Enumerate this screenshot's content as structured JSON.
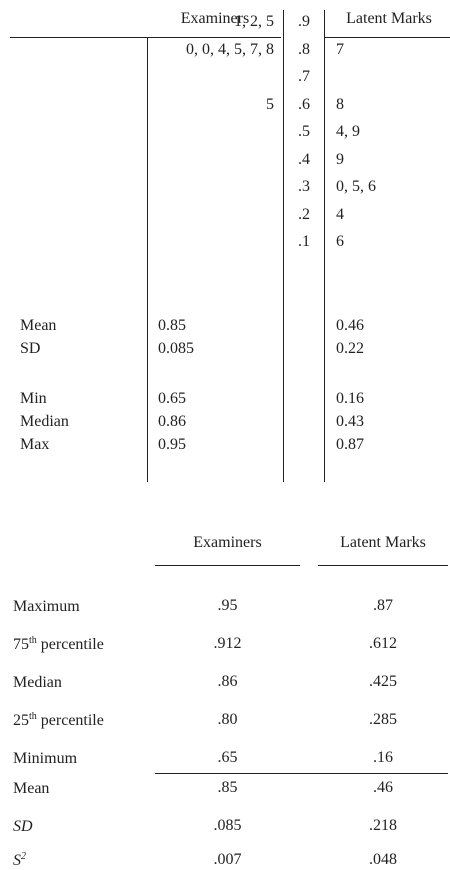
{
  "stem_plot": {
    "header_left": "Examiners",
    "header_right": "Latent Marks",
    "rows": [
      {
        "left": "1, 2, 5",
        "stem": ".9",
        "right": ""
      },
      {
        "left": "0, 0, 4, 5, 7, 8",
        "stem": ".8",
        "right": "7"
      },
      {
        "left": "",
        "stem": ".7",
        "right": ""
      },
      {
        "left": "5",
        "stem": ".6",
        "right": "8"
      },
      {
        "left": "",
        "stem": ".5",
        "right": "4, 9"
      },
      {
        "left": "",
        "stem": ".4",
        "right": "9"
      },
      {
        "left": "",
        "stem": ".3",
        "right": "0, 5, 6"
      },
      {
        "left": "",
        "stem": ".2",
        "right": "4"
      },
      {
        "left": "",
        "stem": ".1",
        "right": "6"
      }
    ],
    "stats": [
      {
        "label": "Mean",
        "examiners": "0.85",
        "latent": "0.46"
      },
      {
        "label": "SD",
        "examiners": "0.085",
        "latent": "0.22"
      },
      {
        "label": "Min",
        "examiners": "0.65",
        "latent": "0.16"
      },
      {
        "label": "Median",
        "examiners": "0.86",
        "latent": "0.43"
      },
      {
        "label": "Max",
        "examiners": "0.95",
        "latent": "0.87"
      }
    ]
  },
  "summary_table": {
    "col_examiners": "Examiners",
    "col_latent": "Latent Marks",
    "rows": [
      {
        "label": "Maximum",
        "sup": "",
        "label_suffix": "",
        "examiners": ".95",
        "latent": ".87"
      },
      {
        "label": "75",
        "sup": "th",
        "label_suffix": " percentile",
        "examiners": ".912",
        "latent": ".612"
      },
      {
        "label": "Median",
        "sup": "",
        "label_suffix": "",
        "examiners": ".86",
        "latent": ".425"
      },
      {
        "label": "25",
        "sup": "th",
        "label_suffix": " percentile",
        "examiners": ".80",
        "latent": ".285"
      },
      {
        "label": "Minimum",
        "sup": "",
        "label_suffix": "",
        "examiners": ".65",
        "latent": ".16"
      }
    ],
    "stats": [
      {
        "label": "Mean",
        "sup": "",
        "examiners": ".85",
        "latent": ".46"
      },
      {
        "label": "SD",
        "sup": "",
        "examiners": ".085",
        "latent": ".218"
      },
      {
        "label": "S",
        "sup": "2",
        "examiners": ".007",
        "latent": ".048"
      }
    ]
  }
}
